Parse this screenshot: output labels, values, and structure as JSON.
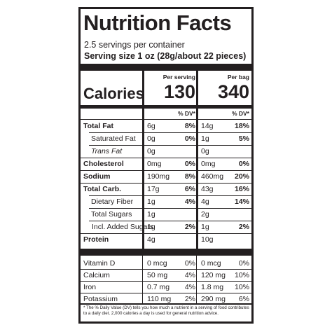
{
  "label": {
    "title": "Nutrition Facts",
    "servings": "2.5 servings per container",
    "serving_size": "Serving size 1 oz (28g/about 22 pieces)",
    "col1_header": "Per serving",
    "col2_header": "Per bag",
    "calories_label": "Calories",
    "calories_serving": "130",
    "calories_bag": "340",
    "dv_header": "% DV*"
  },
  "nutrients": [
    {
      "name": "Total Fat",
      "amt1": "6g",
      "dv1": "8%",
      "amt2": "14g",
      "dv2": "18%"
    },
    {
      "name": "Saturated Fat",
      "amt1": "0g",
      "dv1": "0%",
      "amt2": "1g",
      "dv2": "5%"
    },
    {
      "name": "Trans Fat",
      "amt1": "0g",
      "dv1": "",
      "amt2": "0g",
      "dv2": ""
    },
    {
      "name": "Cholesterol",
      "amt1": "0mg",
      "dv1": "0%",
      "amt2": "0mg",
      "dv2": "0%"
    },
    {
      "name": "Sodium",
      "amt1": "190mg",
      "dv1": "8%",
      "amt2": "460mg",
      "dv2": "20%"
    },
    {
      "name": "Total Carb.",
      "amt1": "17g",
      "dv1": "6%",
      "amt2": "43g",
      "dv2": "16%"
    },
    {
      "name": "Dietary Fiber",
      "amt1": "1g",
      "dv1": "4%",
      "amt2": "4g",
      "dv2": "14%"
    },
    {
      "name": "Total Sugars",
      "amt1": "1g",
      "dv1": "",
      "amt2": "2g",
      "dv2": ""
    },
    {
      "name": "Incl. Added Sugars",
      "amt1": "1g",
      "dv1": "2%",
      "amt2": "1g",
      "dv2": "2%"
    },
    {
      "name": "Protein",
      "amt1": "4g",
      "dv1": "",
      "amt2": "10g",
      "dv2": ""
    }
  ],
  "vitamins": [
    {
      "name": "Vitamin D",
      "amt1": "0 mcg",
      "dv1": "0%",
      "amt2": "0 mcg",
      "dv2": "0%"
    },
    {
      "name": "Calcium",
      "amt1": "50 mg",
      "dv1": "4%",
      "amt2": "120 mg",
      "dv2": "10%"
    },
    {
      "name": "Iron",
      "amt1": "0.7 mg",
      "dv1": "4%",
      "amt2": "1.8 mg",
      "dv2": "10%"
    },
    {
      "name": "Potassium",
      "amt1": "110 mg",
      "dv1": "2%",
      "amt2": "290 mg",
      "dv2": "6%"
    }
  ],
  "footnote": "* The % Daily Value (DV) tells you how much a nutrient in a serving of food contributes to a daily diet. 2,000 calories a day is used for general nutrition advice."
}
